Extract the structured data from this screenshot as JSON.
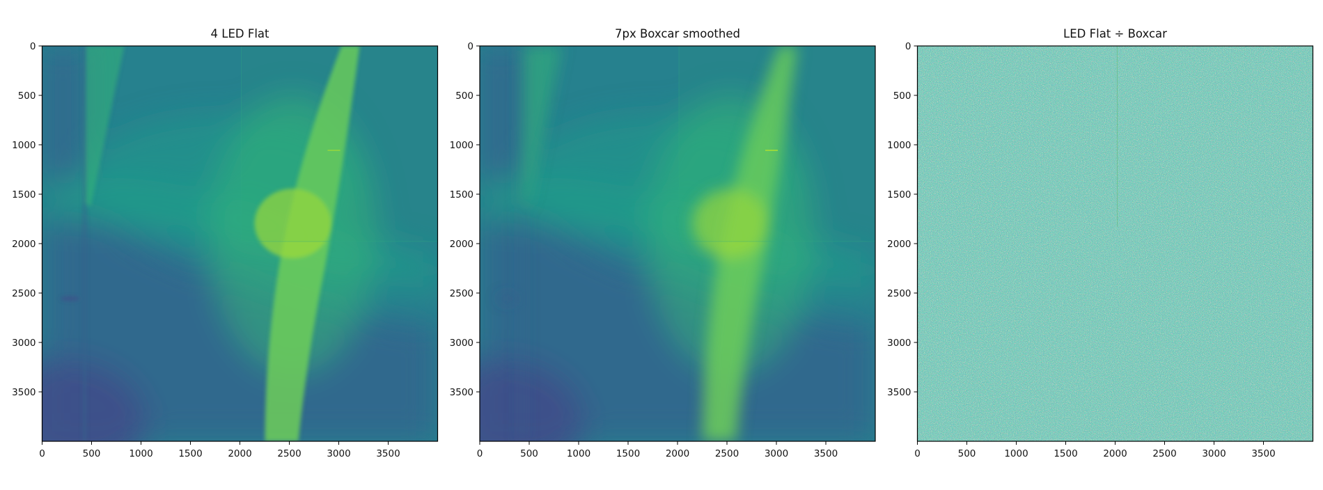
{
  "chart_data": [
    {
      "type": "heatmap",
      "title": "4 LED Flat",
      "xlim": [
        0,
        4000
      ],
      "ylim": [
        4000,
        0
      ],
      "x_ticks": [
        0,
        500,
        1000,
        1500,
        2000,
        2500,
        3000,
        3500
      ],
      "y_ticks": [
        0,
        500,
        1000,
        1500,
        2000,
        2500,
        3000,
        3500
      ],
      "colormap": "viridis",
      "grid": false
    },
    {
      "type": "heatmap",
      "title": "7px Boxcar smoothed",
      "xlim": [
        0,
        4000
      ],
      "ylim": [
        4000,
        0
      ],
      "x_ticks": [
        0,
        500,
        1000,
        1500,
        2000,
        2500,
        3000,
        3500
      ],
      "y_ticks": [
        0,
        500,
        1000,
        1500,
        2000,
        2500,
        3000,
        3500
      ],
      "colormap": "viridis",
      "grid": false
    },
    {
      "type": "heatmap",
      "title": "LED Flat ÷ Boxcar",
      "xlim": [
        0,
        4000
      ],
      "ylim": [
        4000,
        0
      ],
      "x_ticks": [
        0,
        500,
        1000,
        1500,
        2000,
        2500,
        3000,
        3500
      ],
      "y_ticks": [
        0,
        500,
        1000,
        1500,
        2000,
        2500,
        3000,
        3500
      ],
      "colormap": "viridis",
      "grid": false
    }
  ],
  "colors": {
    "dark": "#3e4f8a",
    "blue": "#33648d",
    "teal": "#26818e",
    "teal_green": "#1f9a8a",
    "green": "#35b779",
    "light_green": "#6ccd5a",
    "yellow_green": "#a0da39"
  }
}
